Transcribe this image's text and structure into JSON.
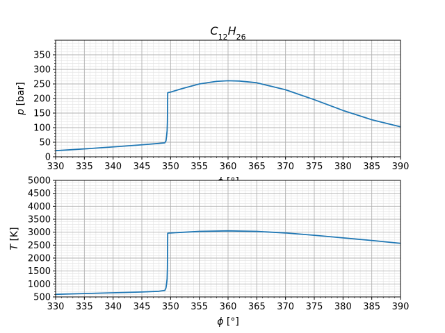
{
  "title": {
    "base": "C",
    "sub1": "12",
    "mid": "H",
    "sub2": "26"
  },
  "chart_data": [
    {
      "type": "line",
      "title": "C12H26",
      "xlabel_symbol": "ϕ",
      "xlabel_unit": "[°]",
      "ylabel_symbol": "p",
      "ylabel_unit": "[bar]",
      "xlim": [
        330,
        390
      ],
      "ylim": [
        0,
        400
      ],
      "xticks": [
        "330",
        "335",
        "340",
        "345",
        "350",
        "355",
        "360",
        "365",
        "370",
        "375",
        "380",
        "385",
        "390"
      ],
      "yticks": [
        "0",
        "50",
        "100",
        "150",
        "200",
        "250",
        "300",
        "350"
      ],
      "grid": true,
      "color": "#1f77b4",
      "x": [
        330,
        335,
        340,
        345,
        348,
        349,
        349.2,
        349.3,
        349.4,
        349.45,
        349.5,
        350,
        352,
        355,
        358,
        360,
        362,
        365,
        370,
        375,
        380,
        385,
        390
      ],
      "y": [
        21,
        27,
        34,
        41,
        46,
        48,
        55,
        70,
        90,
        120,
        220,
        222,
        234,
        250,
        259,
        261,
        260,
        254,
        230,
        196,
        159,
        127,
        103
      ]
    },
    {
      "type": "line",
      "xlabel_symbol": "ϕ",
      "xlabel_unit": "[°]",
      "ylabel_symbol": "T",
      "ylabel_unit": "[K]",
      "xlim": [
        330,
        390
      ],
      "ylim": [
        500,
        5000
      ],
      "xticks": [
        "330",
        "335",
        "340",
        "345",
        "350",
        "355",
        "360",
        "365",
        "370",
        "375",
        "380",
        "385",
        "390"
      ],
      "yticks": [
        "500",
        "1000",
        "1500",
        "2000",
        "2500",
        "3000",
        "3500",
        "4000",
        "4500",
        "5000"
      ],
      "grid": true,
      "color": "#1f77b4",
      "x": [
        330,
        335,
        340,
        345,
        348,
        349,
        349.2,
        349.3,
        349.4,
        349.45,
        349.5,
        350,
        355,
        360,
        365,
        370,
        375,
        380,
        385,
        390
      ],
      "y": [
        600,
        630,
        660,
        690,
        720,
        750,
        850,
        1000,
        1200,
        1600,
        2960,
        2970,
        3030,
        3050,
        3030,
        2970,
        2880,
        2780,
        2680,
        2570
      ]
    }
  ]
}
